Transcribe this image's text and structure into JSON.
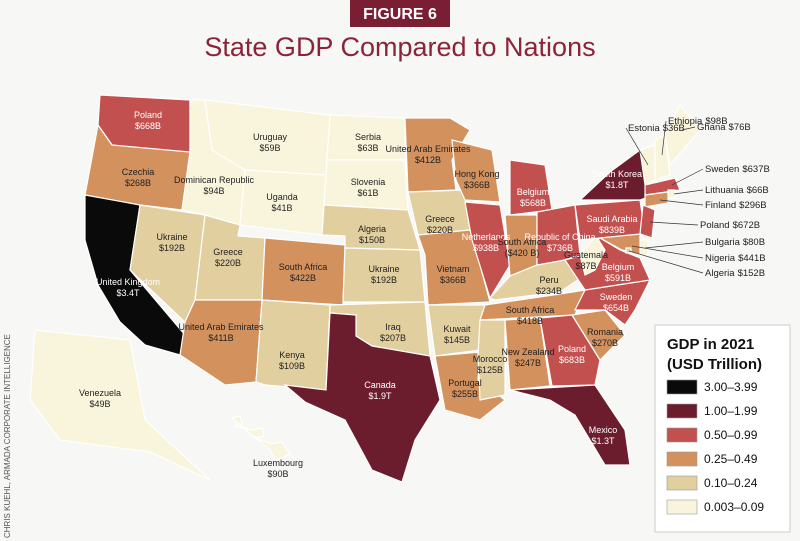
{
  "figure_label": "FIGURE 6",
  "title": "State GDP Compared to Nations",
  "credit": "CHRIS KUEHL, ARMADA CORPORATE INTELLIGENCE",
  "legend": {
    "title": "GDP in 2021",
    "subtitle": "(USD Trillion)",
    "entries": [
      {
        "label": "3.00–3.99",
        "color": "#0a0a0a"
      },
      {
        "label": "1.00–1.99",
        "color": "#6b1d2e"
      },
      {
        "label": "0.50–0.99",
        "color": "#c1504f"
      },
      {
        "label": "0.25–0.49",
        "color": "#d3915e"
      },
      {
        "label": "0.10–0.24",
        "color": "#e2cf9f"
      },
      {
        "label": "0.003–0.09",
        "color": "#f8f5dc"
      }
    ]
  },
  "states": [
    {
      "nation": "Poland",
      "gdp": "$668B",
      "color": "#c1504f"
    },
    {
      "nation": "Czechia",
      "gdp": "$268B",
      "color": "#d3915e"
    },
    {
      "nation": "United Kingdom",
      "gdp": "$3.4T",
      "color": "#0a0a0a"
    },
    {
      "nation": "Ukraine",
      "gdp": "$192B",
      "color": "#e2cf9f"
    },
    {
      "nation": "Dominican Republic",
      "gdp": "$94B",
      "color": "#f8f5dc"
    },
    {
      "nation": "Uruguay",
      "gdp": "$59B",
      "color": "#f8f5dc"
    },
    {
      "nation": "Uganda",
      "gdp": "$41B",
      "color": "#f8f5dc"
    },
    {
      "nation": "Greece",
      "gdp": "$220B",
      "color": "#e2cf9f"
    },
    {
      "nation": "South Africa",
      "gdp": "$422B",
      "color": "#d3915e"
    },
    {
      "nation": "United Arab Emirates",
      "gdp": "$411B",
      "color": "#d3915e"
    },
    {
      "nation": "Kenya",
      "gdp": "$109B",
      "color": "#e2cf9f"
    },
    {
      "nation": "Serbia",
      "gdp": "$63B",
      "color": "#f8f5dc"
    },
    {
      "nation": "Slovenia",
      "gdp": "$61B",
      "color": "#f8f5dc"
    },
    {
      "nation": "Algeria",
      "gdp": "$150B",
      "color": "#e2cf9f"
    },
    {
      "nation": "Ukraine",
      "gdp": "$192B",
      "color": "#e2cf9f"
    },
    {
      "nation": "Iraq",
      "gdp": "$207B",
      "color": "#e2cf9f"
    },
    {
      "nation": "Canada",
      "gdp": "$1.9T",
      "color": "#6b1d2e"
    },
    {
      "nation": "United Arab Emirates",
      "gdp": "$412B",
      "color": "#d3915e"
    },
    {
      "nation": "Greece",
      "gdp": "$220B",
      "color": "#e2cf9f"
    },
    {
      "nation": "Vietnam",
      "gdp": "$366B",
      "color": "#d3915e"
    },
    {
      "nation": "Kuwait",
      "gdp": "$145B",
      "color": "#e2cf9f"
    },
    {
      "nation": "Portugal",
      "gdp": "$255B",
      "color": "#d3915e"
    },
    {
      "nation": "Hong Kong",
      "gdp": "$366B",
      "color": "#d3915e"
    },
    {
      "nation": "Netherlands",
      "gdp": "$938B",
      "color": "#c1504f"
    },
    {
      "nation": "Belgium",
      "gdp": "$568B",
      "color": "#c1504f"
    },
    {
      "nation": "South Africa",
      "gdp": "($420 B)",
      "color": "#d3915e"
    },
    {
      "nation": "Republic of China",
      "gdp": "$736B",
      "color": "#c1504f"
    },
    {
      "nation": "Peru",
      "gdp": "$234B",
      "color": "#e2cf9f"
    },
    {
      "nation": "South Africa",
      "gdp": "$418B",
      "color": "#d3915e"
    },
    {
      "nation": "Morocco",
      "gdp": "$125B",
      "color": "#e2cf9f"
    },
    {
      "nation": "New Zealand",
      "gdp": "$247B",
      "color": "#d3915e"
    },
    {
      "nation": "Poland",
      "gdp": "$683B",
      "color": "#c1504f"
    },
    {
      "nation": "Mexico",
      "gdp": "$1.3T",
      "color": "#6b1d2e"
    },
    {
      "nation": "Romania",
      "gdp": "$270B",
      "color": "#d3915e"
    },
    {
      "nation": "Sweden",
      "gdp": "$654B",
      "color": "#c1504f"
    },
    {
      "nation": "Belgium",
      "gdp": "$591B",
      "color": "#c1504f"
    },
    {
      "nation": "Guatemala",
      "gdp": "$87B",
      "color": "#f8f5dc"
    },
    {
      "nation": "Saudi Arabia",
      "gdp": "$839B",
      "color": "#c1504f"
    },
    {
      "nation": "South Korea",
      "gdp": "$1.8T",
      "color": "#6b1d2e"
    },
    {
      "nation": "Estonia",
      "gdp": "$36B",
      "color": "#f8f5dc"
    },
    {
      "nation": "Ethiopia",
      "gdp": "$98B",
      "color": "#f8f5dc"
    },
    {
      "nation": "Ghana",
      "gdp": "$76B",
      "color": "#f8f5dc"
    },
    {
      "nation": "Sweden",
      "gdp": "$637B",
      "color": "#c1504f"
    },
    {
      "nation": "Lithuania",
      "gdp": "$66B",
      "color": "#f8f5dc"
    },
    {
      "nation": "Finland",
      "gdp": "$296B",
      "color": "#d3915e"
    },
    {
      "nation": "Poland",
      "gdp": "$672B",
      "color": "#c1504f"
    },
    {
      "nation": "Bulgaria",
      "gdp": "$80B",
      "color": "#f8f5dc"
    },
    {
      "nation": "Nigeria",
      "gdp": "$441B",
      "color": "#d3915e"
    },
    {
      "nation": "Algeria",
      "gdp": "$152B",
      "color": "#e2cf9f"
    },
    {
      "nation": "Venezuela",
      "gdp": "$49B",
      "color": "#f8f5dc"
    },
    {
      "nation": "Luxembourg",
      "gdp": "$90B",
      "color": "#f8f5dc"
    }
  ]
}
